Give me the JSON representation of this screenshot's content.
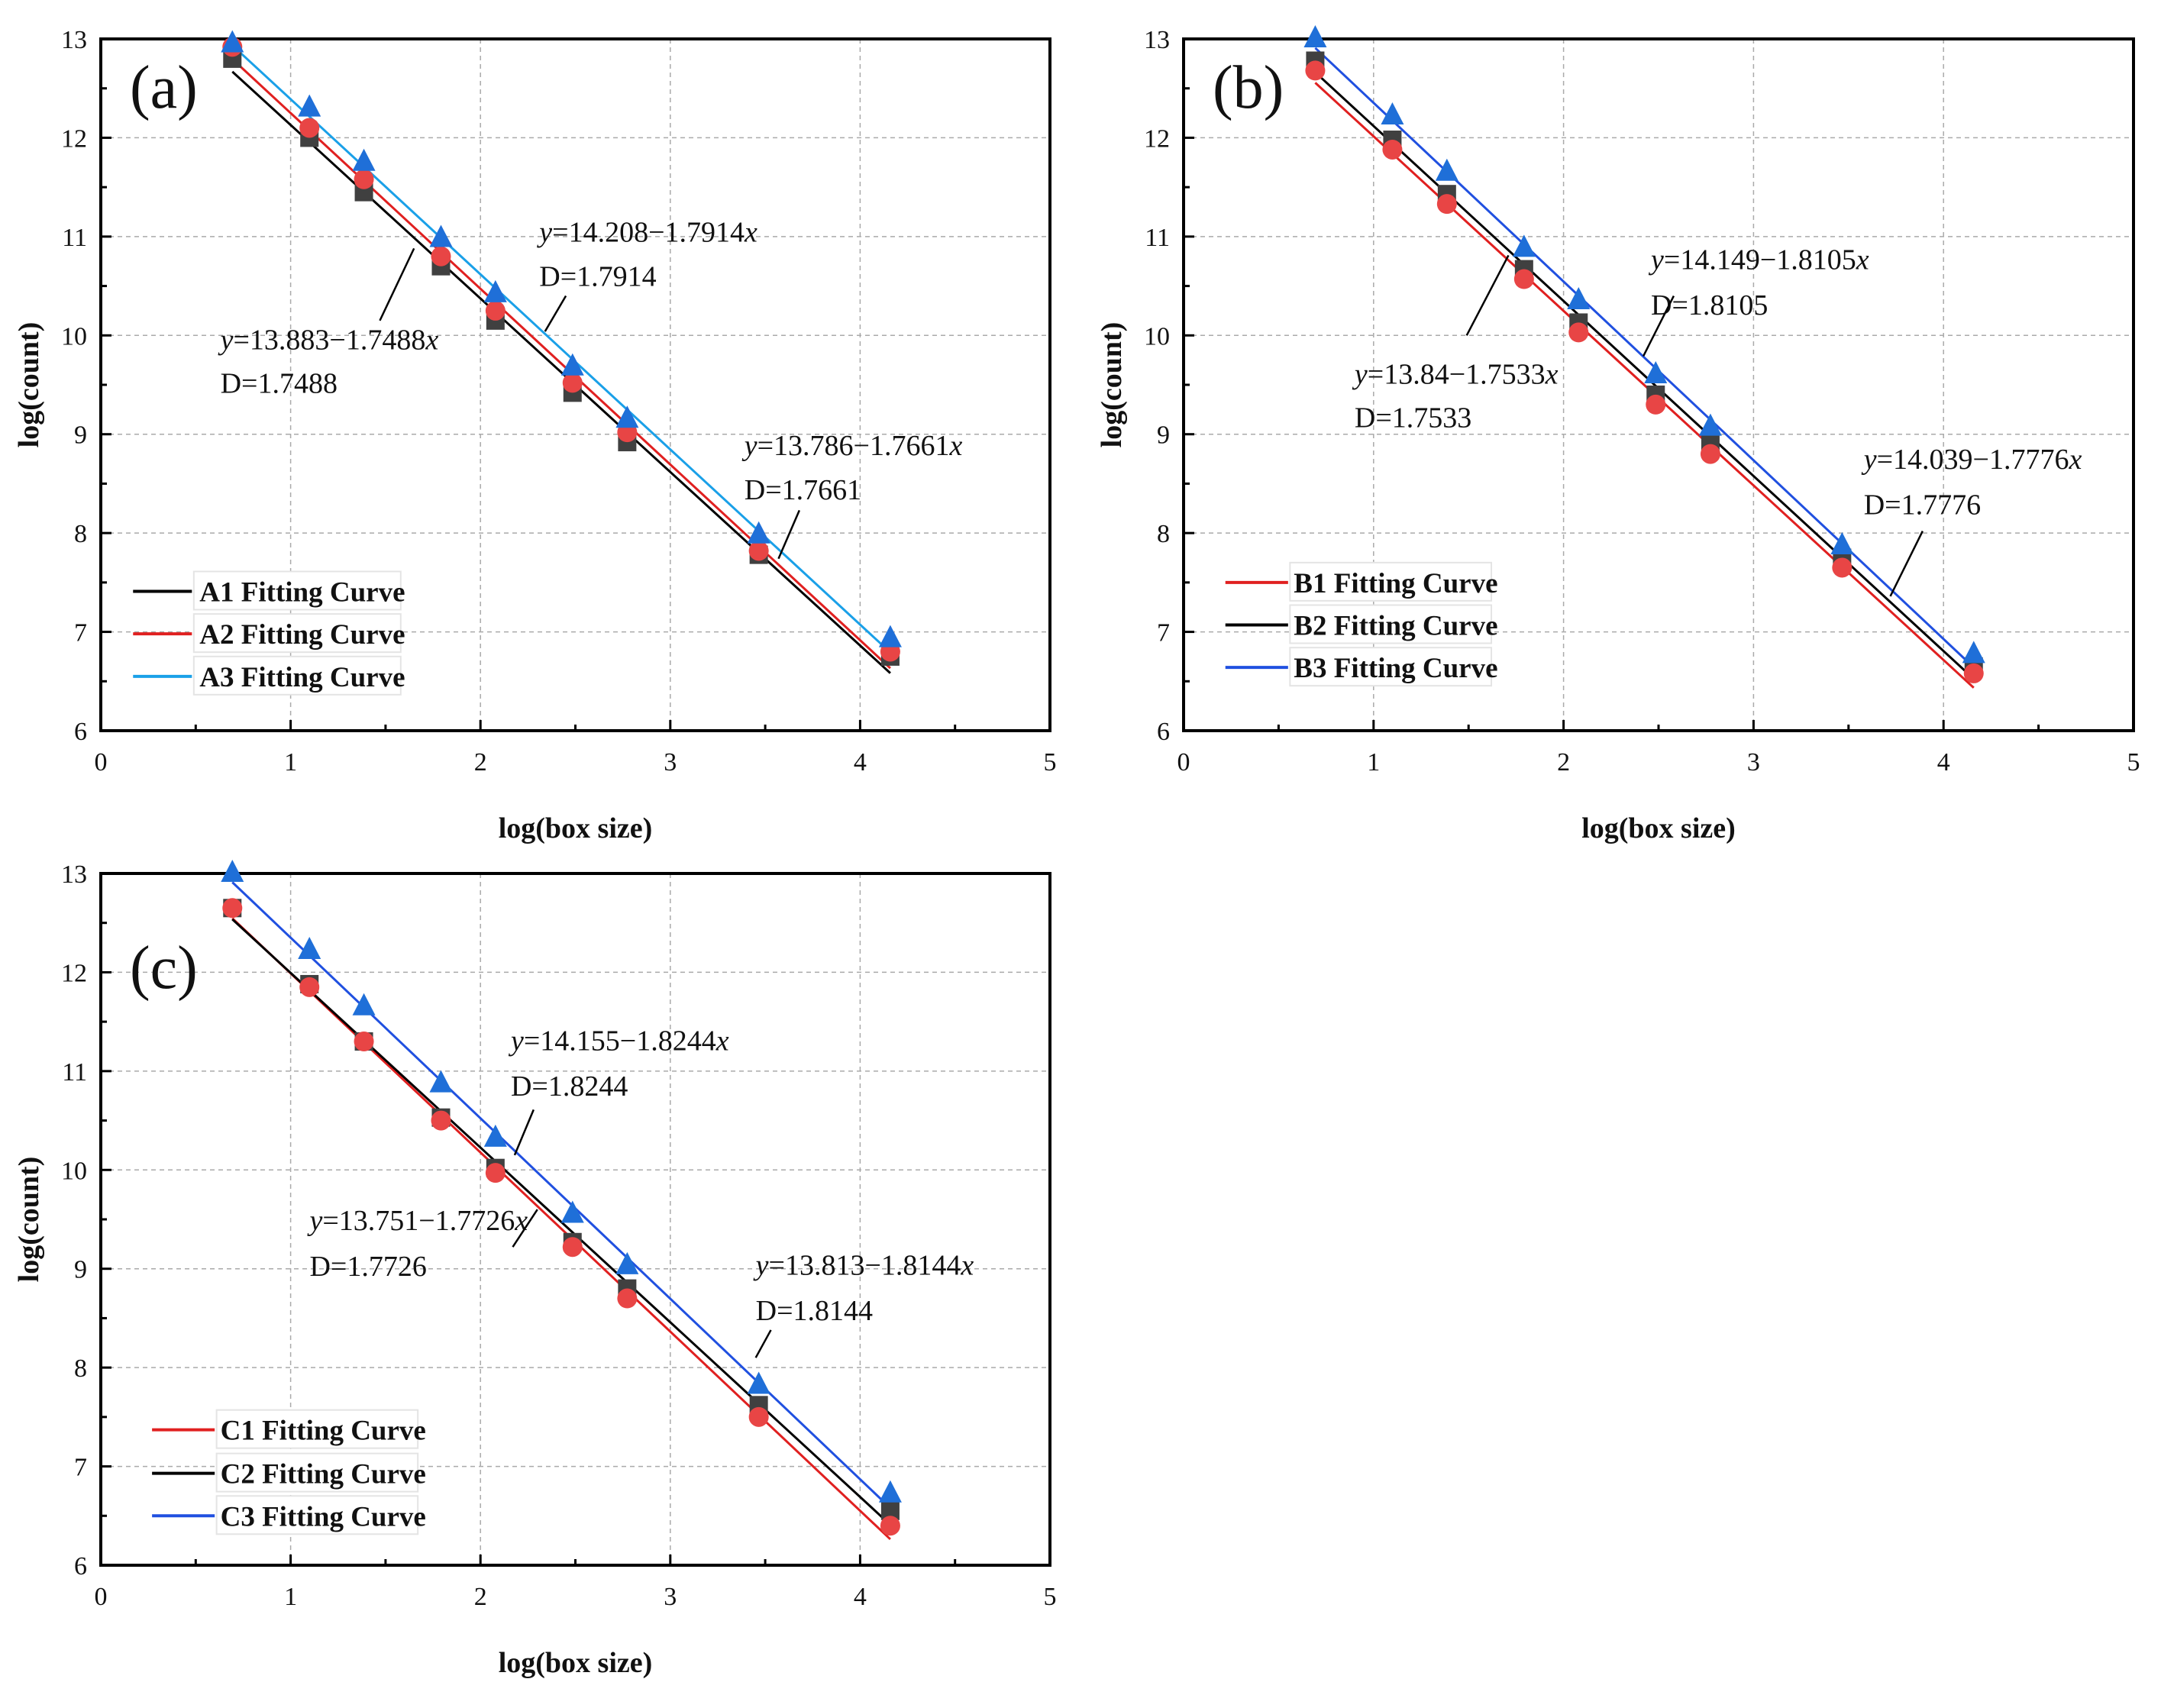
{
  "chart_data": [
    {
      "type": "scatter",
      "panel_label": "(a)",
      "xlabel": "log(box size)",
      "ylabel": "log(count)",
      "xlim": [
        0,
        5
      ],
      "ylim": [
        6,
        13
      ],
      "xticks": [
        "0",
        "1",
        "2",
        "3",
        "4",
        "5"
      ],
      "yticks": [
        "6",
        "7",
        "8",
        "9",
        "10",
        "11",
        "12",
        "13"
      ],
      "grid": true,
      "legend_position": "bottom-left",
      "x": [
        0.693,
        1.099,
        1.386,
        1.792,
        2.079,
        2.485,
        2.773,
        3.466,
        4.159
      ],
      "series": [
        {
          "name": "A1 Fitting Curve",
          "marker": "square",
          "marker_color": "#404040",
          "line_color": "#000000",
          "intercept": 13.883,
          "slope": -1.7488,
          "values": [
            12.8,
            12.0,
            11.45,
            10.7,
            10.15,
            9.42,
            8.92,
            7.78,
            6.75
          ]
        },
        {
          "name": "A2 Fitting Curve",
          "marker": "circle",
          "marker_color": "#e84545",
          "line_color": "#e02020",
          "intercept": 13.786,
          "slope": -1.7661,
          "values": [
            12.92,
            12.1,
            11.58,
            10.8,
            10.25,
            9.52,
            9.02,
            7.82,
            6.8
          ]
        },
        {
          "name": "A3 Fitting Curve",
          "marker": "triangle",
          "marker_color": "#1f6fd8",
          "line_color": "#1aa0e8",
          "intercept": 14.208,
          "slope": -1.7914,
          "values": [
            12.95,
            12.3,
            11.75,
            10.98,
            10.42,
            9.68,
            9.15,
            7.98,
            6.93
          ]
        }
      ],
      "annotations": [
        {
          "eq_prefix": "y",
          "eq": "=14.208−1.7914",
          "eq_suffix": "x",
          "d": "D=1.7914"
        },
        {
          "eq_prefix": "y",
          "eq": "=13.883−1.7488",
          "eq_suffix": "x",
          "d": "D=1.7488"
        },
        {
          "eq_prefix": "y",
          "eq": "=13.786−1.7661",
          "eq_suffix": "x",
          "d": "D=1.7661"
        }
      ]
    },
    {
      "type": "scatter",
      "panel_label": "(b)",
      "xlabel": "log(box size)",
      "ylabel": "log(count)",
      "xlim": [
        0,
        5
      ],
      "ylim": [
        6,
        13
      ],
      "xticks": [
        "0",
        "1",
        "2",
        "3",
        "4",
        "5"
      ],
      "yticks": [
        "6",
        "7",
        "8",
        "9",
        "10",
        "11",
        "12",
        "13"
      ],
      "grid": true,
      "legend_position": "bottom-left",
      "x": [
        0.693,
        1.099,
        1.386,
        1.792,
        2.079,
        2.485,
        2.773,
        3.466,
        4.159
      ],
      "series": [
        {
          "name": "B1 Fitting Curve",
          "marker": "circle",
          "marker_color": "#e84545",
          "line_color": "#e02020",
          "intercept": 13.84,
          "slope": -1.7533,
          "values": [
            12.68,
            11.88,
            11.33,
            10.57,
            10.03,
            9.3,
            8.8,
            7.65,
            6.58
          ]
        },
        {
          "name": "B2 Fitting Curve",
          "marker": "square",
          "marker_color": "#404040",
          "line_color": "#000000",
          "intercept": 14.039,
          "slope": -1.7776,
          "values": [
            12.78,
            11.98,
            11.43,
            10.67,
            10.13,
            9.4,
            8.92,
            7.75,
            6.65
          ]
        },
        {
          "name": "B3 Fitting Curve",
          "marker": "triangle",
          "marker_color": "#1f6fd8",
          "line_color": "#2050e0",
          "intercept": 14.149,
          "slope": -1.8105,
          "values": [
            13.0,
            12.22,
            11.65,
            10.88,
            10.35,
            9.6,
            9.07,
            7.87,
            6.77
          ]
        }
      ],
      "annotations": [
        {
          "eq_prefix": "y",
          "eq": "=14.149−1.8105",
          "eq_suffix": "x",
          "d": "D=1.8105"
        },
        {
          "eq_prefix": "y",
          "eq": "=13.84−1.7533",
          "eq_suffix": "x",
          "d": "D=1.7533"
        },
        {
          "eq_prefix": "y",
          "eq": "=14.039−1.7776",
          "eq_suffix": "x",
          "d": "D=1.7776"
        }
      ]
    },
    {
      "type": "scatter",
      "panel_label": "(c)",
      "xlabel": "log(box size)",
      "ylabel": "log(count)",
      "xlim": [
        0,
        5
      ],
      "ylim": [
        6,
        13
      ],
      "xticks": [
        "0",
        "1",
        "2",
        "3",
        "4",
        "5"
      ],
      "yticks": [
        "6",
        "7",
        "8",
        "9",
        "10",
        "11",
        "12",
        "13"
      ],
      "grid": true,
      "legend_position": "bottom-left",
      "x": [
        0.693,
        1.099,
        1.386,
        1.792,
        2.079,
        2.485,
        2.773,
        3.466,
        4.159
      ],
      "series": [
        {
          "name": "C1 Fitting Curve",
          "marker": "circle",
          "marker_color": "#e84545",
          "line_color": "#e02020",
          "intercept": 13.751,
          "slope": -1.7726,
          "values": [
            12.65,
            11.85,
            11.3,
            10.5,
            9.97,
            9.22,
            8.7,
            7.5,
            6.4
          ]
        },
        {
          "name": "C2 Fitting Curve",
          "marker": "square",
          "marker_color": "#404040",
          "line_color": "#000000",
          "intercept": 13.813,
          "slope": -1.8144,
          "values": [
            12.65,
            11.88,
            11.3,
            10.53,
            10.02,
            9.27,
            8.8,
            7.62,
            6.55
          ]
        },
        {
          "name": "C3 Fitting Curve",
          "marker": "triangle",
          "marker_color": "#1f6fd8",
          "line_color": "#2050e0",
          "intercept": 14.155,
          "slope": -1.8244,
          "values": [
            13.0,
            12.22,
            11.65,
            10.87,
            10.32,
            9.55,
            9.03,
            7.82,
            6.72
          ]
        }
      ],
      "annotations": [
        {
          "eq_prefix": "y",
          "eq": "=14.155−1.8244",
          "eq_suffix": "x",
          "d": "D=1.8244"
        },
        {
          "eq_prefix": "y",
          "eq": "=13.751−1.7726",
          "eq_suffix": "x",
          "d": "D=1.7726"
        },
        {
          "eq_prefix": "y",
          "eq": "=13.813−1.8144",
          "eq_suffix": "x",
          "d": "D=1.8144"
        }
      ]
    }
  ]
}
